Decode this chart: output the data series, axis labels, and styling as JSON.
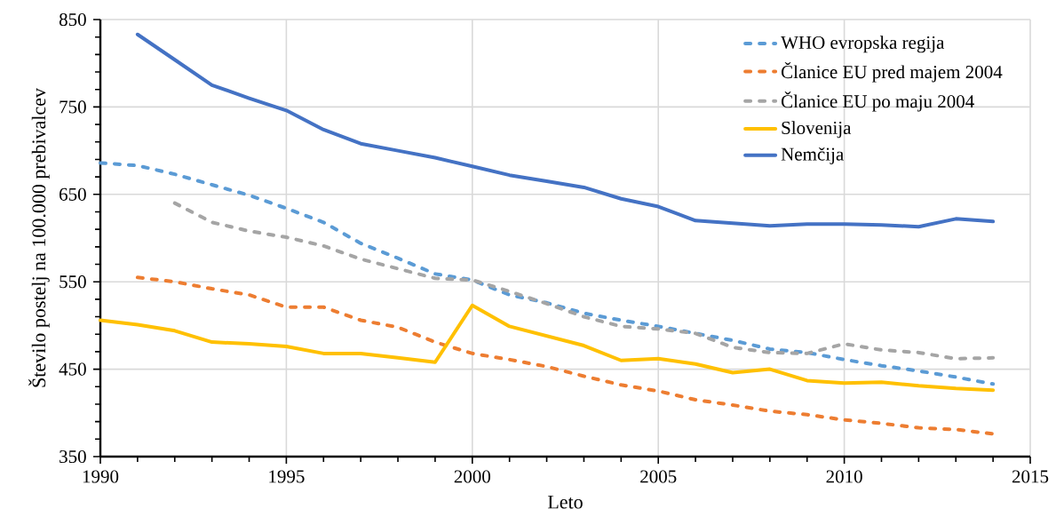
{
  "chart_data": {
    "type": "line",
    "xlabel": "Leto",
    "ylabel": "Število postelj na 100.000 prebivalcev",
    "x": [
      1990,
      1991,
      1992,
      1993,
      1994,
      1995,
      1996,
      1997,
      1998,
      1999,
      2000,
      2001,
      2002,
      2003,
      2004,
      2005,
      2006,
      2007,
      2008,
      2009,
      2010,
      2011,
      2012,
      2013,
      2014
    ],
    "series": [
      {
        "name": "WHO evropska regija",
        "color": "#5b9bd5",
        "line_style": "dotted",
        "values": [
          686,
          683,
          673,
          661,
          649,
          634,
          618,
          594,
          577,
          559,
          552,
          535,
          526,
          514,
          506,
          499,
          491,
          483,
          473,
          469,
          461,
          454,
          448,
          441,
          433
        ]
      },
      {
        "name": "Članice EU pred majem 2004",
        "color": "#ed7d31",
        "line_style": "dotted",
        "values": [
          null,
          555,
          550,
          542,
          535,
          521,
          521,
          506,
          498,
          481,
          468,
          461,
          453,
          442,
          432,
          425,
          415,
          409,
          402,
          398,
          392,
          388,
          383,
          381,
          376
        ]
      },
      {
        "name": "Članice EU po maju 2004",
        "color": "#a5a5a5",
        "line_style": "dotted",
        "values": [
          null,
          null,
          640,
          618,
          608,
          601,
          591,
          576,
          565,
          554,
          552,
          539,
          525,
          510,
          499,
          496,
          491,
          475,
          469,
          468,
          479,
          472,
          469,
          462,
          463
        ]
      },
      {
        "name": "Slovenija",
        "color": "#ffc000",
        "line_style": "solid",
        "values": [
          506,
          501,
          494,
          481,
          479,
          476,
          468,
          468,
          463,
          458,
          523,
          499,
          488,
          477,
          460,
          462,
          456,
          446,
          450,
          437,
          434,
          435,
          431,
          428,
          426
        ]
      },
      {
        "name": "Nemčija",
        "color": "#4472c4",
        "line_style": "solid",
        "values": [
          null,
          833,
          804,
          775,
          760,
          746,
          724,
          708,
          700,
          692,
          682,
          672,
          665,
          658,
          645,
          636,
          620,
          617,
          614,
          616,
          616,
          615,
          613,
          622,
          619
        ]
      }
    ],
    "xlim": [
      1990,
      2015
    ],
    "ylim": [
      350,
      850
    ],
    "xticks": [
      1990,
      1995,
      2000,
      2005,
      2010,
      2015
    ],
    "yticks": [
      350,
      450,
      550,
      650,
      750,
      850
    ],
    "grid": true,
    "legend": "top right",
    "marker": "none"
  }
}
